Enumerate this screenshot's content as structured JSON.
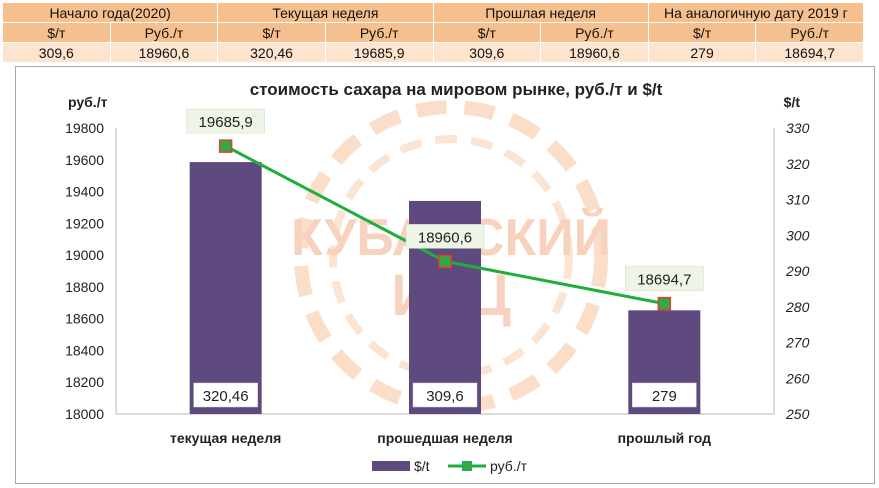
{
  "summary_table": {
    "groups": [
      "Начало года(2020)",
      "Текущая неделя",
      "Прошлая неделя",
      "На аналогичную дату 2019 г"
    ],
    "units": [
      "$/т",
      "Руб./т",
      "$/т",
      "Руб./т",
      "$/т",
      "Руб./т",
      "$/т",
      "Руб./т"
    ],
    "values": [
      "309,6",
      "18960,6",
      "320,46",
      "19685,9",
      "309,6",
      "18960,6",
      "279",
      "18694,7"
    ]
  },
  "watermark": {
    "line1": "КУБАНСКИЙ",
    "line2": "ИКЦ"
  },
  "colors": {
    "bar": "#5f4a7f",
    "line": "#1fae3c",
    "marker": "#2eaa48",
    "marker_edge": "#e0402a",
    "label_bg": "#eef5e6"
  },
  "chart_data": {
    "type": "bar",
    "title": "стоимость сахара на мировом рынке, руб./т и $/t",
    "categories": [
      "текущая неделя",
      "прошедшая неделя",
      "прошлый год"
    ],
    "left_axis_label": "руб./т",
    "right_axis_label": "$/t",
    "left_ylim": [
      18000,
      19800
    ],
    "left_ticks": [
      18000,
      18200,
      18400,
      18600,
      18800,
      19000,
      19200,
      19400,
      19600,
      19800
    ],
    "right_ylim": [
      250,
      330
    ],
    "right_ticks": [
      250,
      260,
      270,
      280,
      290,
      300,
      310,
      320,
      330
    ],
    "series": [
      {
        "name": "$/t",
        "type": "bar",
        "axis": "right",
        "values": [
          320.46,
          309.6,
          279
        ],
        "labels": [
          "320,46",
          "309,6",
          "279"
        ]
      },
      {
        "name": "руб./т",
        "type": "line",
        "axis": "left",
        "values": [
          19685.9,
          18960.6,
          18694.7
        ],
        "labels": [
          "19685,9",
          "18960,6",
          "18694,7"
        ]
      }
    ],
    "legend_position": "bottom",
    "grid": false
  }
}
